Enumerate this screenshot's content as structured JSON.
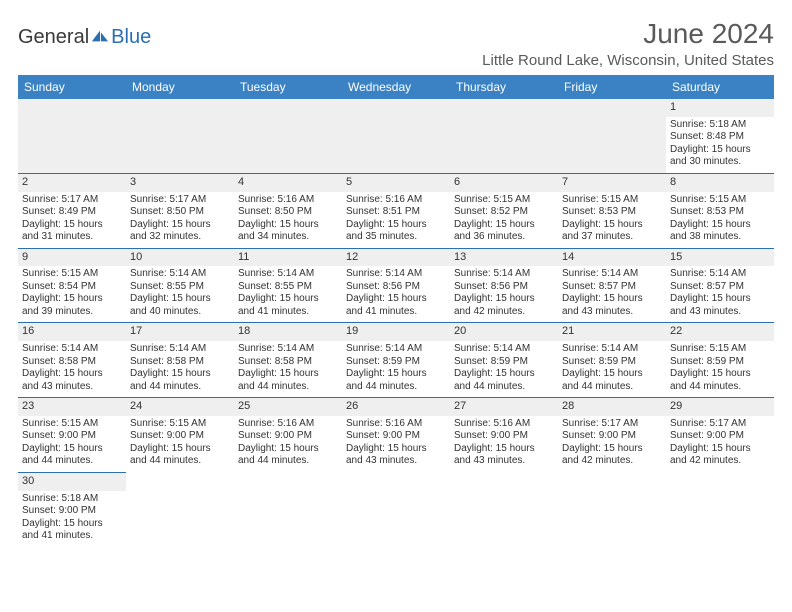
{
  "logo": {
    "word1": "General",
    "word2": "Blue"
  },
  "title": "June 2024",
  "location": "Little Round Lake, Wisconsin, United States",
  "colors": {
    "header_bg": "#3b82c4",
    "header_text": "#ffffff",
    "row_border": "#2b6fb0",
    "daynum_bg": "#efefef",
    "logo_blue": "#2b6fb0",
    "text": "#333333"
  },
  "weekdays": [
    "Sunday",
    "Monday",
    "Tuesday",
    "Wednesday",
    "Thursday",
    "Friday",
    "Saturday"
  ],
  "days": {
    "1": {
      "sunrise": "5:18 AM",
      "sunset": "8:48 PM",
      "daylight": "15 hours and 30 minutes."
    },
    "2": {
      "sunrise": "5:17 AM",
      "sunset": "8:49 PM",
      "daylight": "15 hours and 31 minutes."
    },
    "3": {
      "sunrise": "5:17 AM",
      "sunset": "8:50 PM",
      "daylight": "15 hours and 32 minutes."
    },
    "4": {
      "sunrise": "5:16 AM",
      "sunset": "8:50 PM",
      "daylight": "15 hours and 34 minutes."
    },
    "5": {
      "sunrise": "5:16 AM",
      "sunset": "8:51 PM",
      "daylight": "15 hours and 35 minutes."
    },
    "6": {
      "sunrise": "5:15 AM",
      "sunset": "8:52 PM",
      "daylight": "15 hours and 36 minutes."
    },
    "7": {
      "sunrise": "5:15 AM",
      "sunset": "8:53 PM",
      "daylight": "15 hours and 37 minutes."
    },
    "8": {
      "sunrise": "5:15 AM",
      "sunset": "8:53 PM",
      "daylight": "15 hours and 38 minutes."
    },
    "9": {
      "sunrise": "5:15 AM",
      "sunset": "8:54 PM",
      "daylight": "15 hours and 39 minutes."
    },
    "10": {
      "sunrise": "5:14 AM",
      "sunset": "8:55 PM",
      "daylight": "15 hours and 40 minutes."
    },
    "11": {
      "sunrise": "5:14 AM",
      "sunset": "8:55 PM",
      "daylight": "15 hours and 41 minutes."
    },
    "12": {
      "sunrise": "5:14 AM",
      "sunset": "8:56 PM",
      "daylight": "15 hours and 41 minutes."
    },
    "13": {
      "sunrise": "5:14 AM",
      "sunset": "8:56 PM",
      "daylight": "15 hours and 42 minutes."
    },
    "14": {
      "sunrise": "5:14 AM",
      "sunset": "8:57 PM",
      "daylight": "15 hours and 43 minutes."
    },
    "15": {
      "sunrise": "5:14 AM",
      "sunset": "8:57 PM",
      "daylight": "15 hours and 43 minutes."
    },
    "16": {
      "sunrise": "5:14 AM",
      "sunset": "8:58 PM",
      "daylight": "15 hours and 43 minutes."
    },
    "17": {
      "sunrise": "5:14 AM",
      "sunset": "8:58 PM",
      "daylight": "15 hours and 44 minutes."
    },
    "18": {
      "sunrise": "5:14 AM",
      "sunset": "8:58 PM",
      "daylight": "15 hours and 44 minutes."
    },
    "19": {
      "sunrise": "5:14 AM",
      "sunset": "8:59 PM",
      "daylight": "15 hours and 44 minutes."
    },
    "20": {
      "sunrise": "5:14 AM",
      "sunset": "8:59 PM",
      "daylight": "15 hours and 44 minutes."
    },
    "21": {
      "sunrise": "5:14 AM",
      "sunset": "8:59 PM",
      "daylight": "15 hours and 44 minutes."
    },
    "22": {
      "sunrise": "5:15 AM",
      "sunset": "8:59 PM",
      "daylight": "15 hours and 44 minutes."
    },
    "23": {
      "sunrise": "5:15 AM",
      "sunset": "9:00 PM",
      "daylight": "15 hours and 44 minutes."
    },
    "24": {
      "sunrise": "5:15 AM",
      "sunset": "9:00 PM",
      "daylight": "15 hours and 44 minutes."
    },
    "25": {
      "sunrise": "5:16 AM",
      "sunset": "9:00 PM",
      "daylight": "15 hours and 44 minutes."
    },
    "26": {
      "sunrise": "5:16 AM",
      "sunset": "9:00 PM",
      "daylight": "15 hours and 43 minutes."
    },
    "27": {
      "sunrise": "5:16 AM",
      "sunset": "9:00 PM",
      "daylight": "15 hours and 43 minutes."
    },
    "28": {
      "sunrise": "5:17 AM",
      "sunset": "9:00 PM",
      "daylight": "15 hours and 42 minutes."
    },
    "29": {
      "sunrise": "5:17 AM",
      "sunset": "9:00 PM",
      "daylight": "15 hours and 42 minutes."
    },
    "30": {
      "sunrise": "5:18 AM",
      "sunset": "9:00 PM",
      "daylight": "15 hours and 41 minutes."
    }
  },
  "labels": {
    "sunrise": "Sunrise: ",
    "sunset": "Sunset: ",
    "daylight": "Daylight: "
  },
  "grid": [
    [
      null,
      null,
      null,
      null,
      null,
      null,
      "1"
    ],
    [
      "2",
      "3",
      "4",
      "5",
      "6",
      "7",
      "8"
    ],
    [
      "9",
      "10",
      "11",
      "12",
      "13",
      "14",
      "15"
    ],
    [
      "16",
      "17",
      "18",
      "19",
      "20",
      "21",
      "22"
    ],
    [
      "23",
      "24",
      "25",
      "26",
      "27",
      "28",
      "29"
    ],
    [
      "30",
      null,
      null,
      null,
      null,
      null,
      null
    ]
  ]
}
